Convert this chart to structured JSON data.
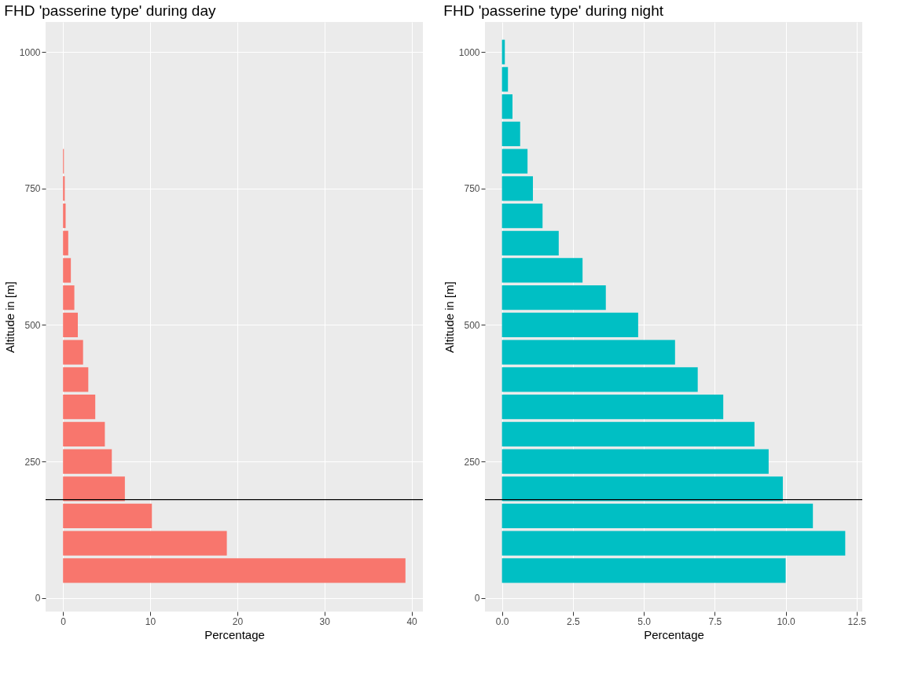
{
  "chart_data": [
    {
      "type": "bar",
      "orientation": "horizontal",
      "title": "FHD 'passerine type' during day",
      "xlabel": "Percentage",
      "ylabel": "Altitude in [m]",
      "x": [
        50,
        100,
        150,
        200,
        250,
        300,
        350,
        400,
        450,
        500,
        550,
        600,
        650,
        700,
        750,
        800
      ],
      "values": [
        39.3,
        18.8,
        10.2,
        7.1,
        5.6,
        4.8,
        3.7,
        2.9,
        2.3,
        1.7,
        1.3,
        0.9,
        0.6,
        0.3,
        0.2,
        0.1
      ],
      "color": "#f8766d",
      "xlim": [
        -2,
        41.3
      ],
      "xticks": [
        0,
        10,
        20,
        30,
        40
      ],
      "ylim": [
        -25,
        1055
      ],
      "yticks": [
        0,
        250,
        500,
        750,
        1000
      ],
      "grid": true,
      "ref_lines": [
        {
          "axis": "y",
          "value": 180,
          "color": "#000000"
        }
      ]
    },
    {
      "type": "bar",
      "orientation": "horizontal",
      "title": "FHD 'passerine type' during night",
      "xlabel": "Percentage",
      "ylabel": "Altitude in [m]",
      "x": [
        50,
        100,
        150,
        200,
        250,
        300,
        350,
        400,
        450,
        500,
        550,
        600,
        650,
        700,
        750,
        800,
        850,
        900,
        950,
        1000
      ],
      "values": [
        10.0,
        12.1,
        10.96,
        9.9,
        9.4,
        8.9,
        7.8,
        6.9,
        6.1,
        4.8,
        3.66,
        2.84,
        2.0,
        1.43,
        1.09,
        0.9,
        0.64,
        0.37,
        0.21,
        0.1
      ],
      "color": "#00bfc4",
      "xlim": [
        -0.6,
        12.7
      ],
      "xticks": [
        {
          "value": 0,
          "label": "0.0"
        },
        {
          "value": 2.5,
          "label": "2.5"
        },
        {
          "value": 5,
          "label": "5.0"
        },
        {
          "value": 7.5,
          "label": "7.5"
        },
        {
          "value": 10,
          "label": "10.0"
        },
        {
          "value": 12.5,
          "label": "12.5"
        }
      ],
      "ylim": [
        -25,
        1055
      ],
      "yticks": [
        0,
        250,
        500,
        750,
        1000
      ],
      "grid": true,
      "ref_lines": [
        {
          "axis": "y",
          "value": 180,
          "color": "#000000"
        }
      ]
    }
  ]
}
